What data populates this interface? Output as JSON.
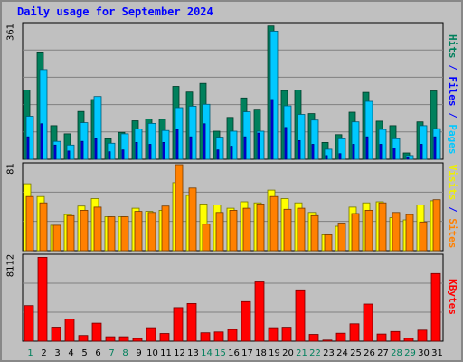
{
  "title": "Daily usage for September 2024",
  "chart_data": {
    "type": "bar",
    "title": "Daily usage for September 2024",
    "categories": [
      "1",
      "2",
      "3",
      "4",
      "5",
      "6",
      "7",
      "8",
      "9",
      "10",
      "11",
      "12",
      "13",
      "14",
      "15",
      "16",
      "17",
      "18",
      "19",
      "20",
      "21",
      "22",
      "23",
      "24",
      "25",
      "26",
      "27",
      "28",
      "29",
      "30",
      "31"
    ],
    "weekend_days": [
      "1",
      "7",
      "8",
      "14",
      "15",
      "21",
      "22",
      "28",
      "29"
    ],
    "panels": [
      {
        "id": "hits",
        "ymax_label": "361",
        "ylim": [
          0,
          361
        ],
        "legend": [
          {
            "text": "Hits",
            "color": "#00805c"
          },
          {
            "text": " / ",
            "color": "#0000ff"
          },
          {
            "text": "Files",
            "color": "#0000ff"
          },
          {
            "text": " / ",
            "color": "#0000ff"
          },
          {
            "text": "Pages",
            "color": "#00c8ff"
          }
        ],
        "series": [
          {
            "name": "Hits",
            "color": "#00805c",
            "values": [
              185,
              285,
              90,
              68,
              128,
              160,
              55,
              72,
              103,
              108,
              107,
              195,
              180,
              203,
              75,
              112,
              164,
              134,
              357,
              184,
              185,
              122,
              45,
              66,
              126,
              179,
              102,
              90,
              17,
              100,
              183
            ]
          },
          {
            "name": "Files",
            "color": "#0000ff",
            "values": [
              60,
              95,
              38,
              22,
              48,
              55,
              20,
              25,
              45,
              40,
              45,
              80,
              60,
              95,
              25,
              35,
              60,
              70,
              160,
              85,
              50,
              40,
              10,
              15,
              40,
              60,
              40,
              30,
              5,
              40,
              60
            ]
          },
          {
            "name": "Pages",
            "color": "#00c8ff",
            "values": [
              115,
              240,
              48,
              38,
              98,
              168,
              43,
              68,
              81,
              96,
              77,
              138,
              142,
              147,
              59,
              75,
              127,
              75,
              343,
              143,
              120,
              105,
              27,
              55,
              100,
              155,
              80,
              55,
              10,
              90,
              82
            ]
          }
        ]
      },
      {
        "id": "visits",
        "ymax_label": "81",
        "ylim": [
          0,
          81
        ],
        "legend": [
          {
            "text": "Visits",
            "color": "#f0f000"
          },
          {
            "text": " / ",
            "color": "#0000ff"
          },
          {
            "text": "Sites",
            "color": "#ff8000"
          }
        ],
        "series": [
          {
            "name": "Visits",
            "color": "#ffff00",
            "values": [
              63,
              51,
              24,
              34,
              42,
              49,
              32,
              32,
              40,
              37,
              38,
              64,
              52,
              44,
              43,
              40,
              46,
              45,
              57,
              49,
              45,
              36,
              15,
              23,
              41,
              45,
              46,
              31,
              29,
              43,
              47
            ]
          },
          {
            "name": "Sites",
            "color": "#ff8000",
            "values": [
              51,
              45,
              24,
              33,
              38,
              41,
              32,
              32,
              37,
              36,
              42,
              81,
              59,
              25,
              36,
              38,
              40,
              44,
              51,
              39,
              40,
              33,
              15,
              26,
              35,
              38,
              45,
              36,
              34,
              27,
              48
            ]
          }
        ]
      },
      {
        "id": "kbytes",
        "ymax_label": "8112",
        "ylim": [
          0,
          8112
        ],
        "legend": [
          {
            "text": "KBytes",
            "color": "#ff0000"
          }
        ],
        "series": [
          {
            "name": "KBytes",
            "color": "#ff0000",
            "values": [
              3390,
              7995,
              1340,
              2100,
              540,
              1720,
              420,
              420,
              260,
              1290,
              730,
              3200,
              3590,
              800,
              880,
              1110,
              3770,
              5650,
              1290,
              1330,
              4890,
              650,
              100,
              760,
              1660,
              3540,
              680,
              920,
              280,
              1050,
              6450
            ]
          }
        ]
      }
    ]
  }
}
